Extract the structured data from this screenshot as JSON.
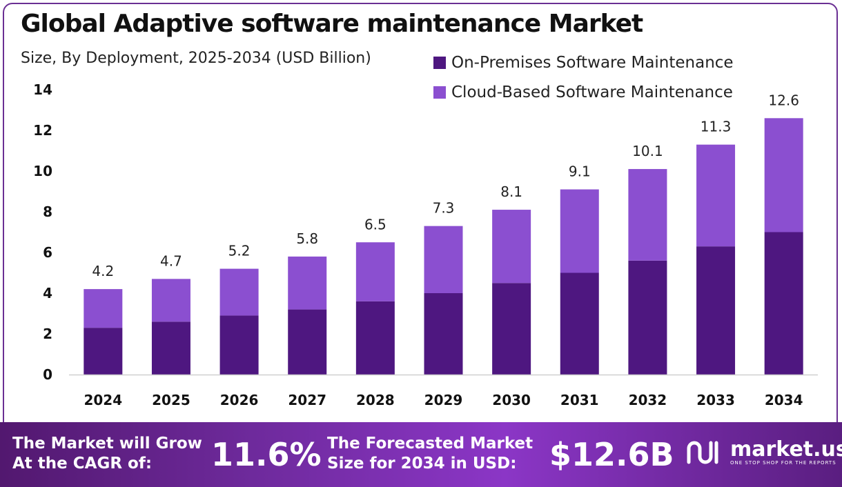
{
  "header": {
    "title": "Global Adaptive software maintenance Market",
    "subtitle": "Size, By Deployment, 2025-2034 (USD Billion)"
  },
  "legend": [
    {
      "label": "On-Premises Software Maintenance",
      "color": "#4e1780"
    },
    {
      "label": "Cloud-Based Software Maintenance",
      "color": "#8b4fd0"
    }
  ],
  "chart_data": {
    "type": "bar",
    "stacked": true,
    "title": "Global Adaptive software maintenance Market",
    "subtitle": "Size, By Deployment, 2025-2034 (USD Billion)",
    "categories": [
      "2024",
      "2025",
      "2026",
      "2027",
      "2028",
      "2029",
      "2030",
      "2031",
      "2032",
      "2033",
      "2034"
    ],
    "series": [
      {
        "name": "On-Premises Software Maintenance",
        "color": "#4e1780",
        "values": [
          2.3,
          2.6,
          2.9,
          3.2,
          3.6,
          4.0,
          4.5,
          5.0,
          5.6,
          6.3,
          7.0
        ]
      },
      {
        "name": "Cloud-Based Software Maintenance",
        "color": "#8b4fd0",
        "values": [
          1.9,
          2.1,
          2.3,
          2.6,
          2.9,
          3.3,
          3.6,
          4.1,
          4.5,
          5.0,
          5.6
        ]
      }
    ],
    "totals": [
      "4.2",
      "4.7",
      "5.2",
      "5.8",
      "6.5",
      "7.3",
      "8.1",
      "9.1",
      "10.1",
      "11.3",
      "12.6"
    ],
    "yticks": [
      0,
      2,
      4,
      6,
      8,
      10,
      12,
      14
    ],
    "ylim": [
      0,
      14
    ],
    "xlabel": "",
    "ylabel": "",
    "legend_position": "top-right",
    "grid": false
  },
  "footer": {
    "cagr_label": "The Market will Grow\nAt the CAGR of:",
    "cagr_value": "11.6%",
    "forecast_label": "The Forecasted Market\nSize for 2034 in USD:",
    "forecast_value": "$12.6B",
    "brand_name": "market.us",
    "brand_tagline": "ONE STOP SHOP FOR THE REPORTS"
  }
}
